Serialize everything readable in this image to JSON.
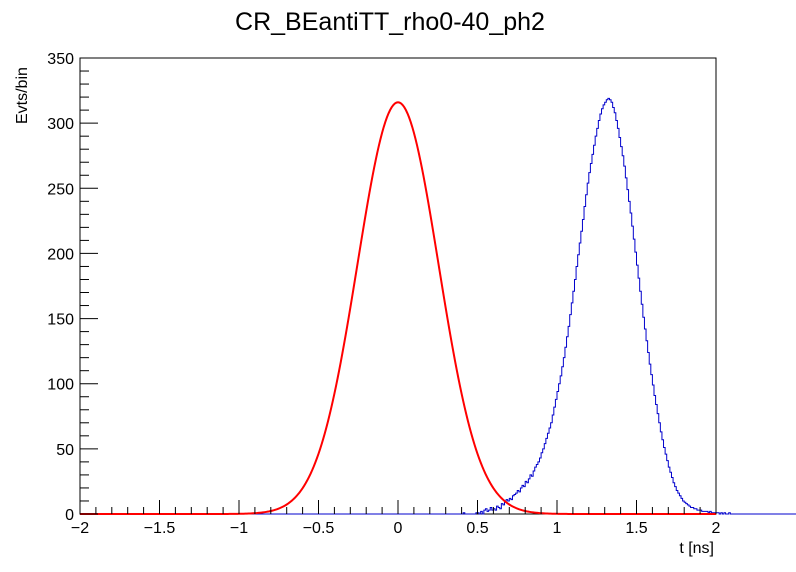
{
  "chart_data": {
    "type": "histogram",
    "title": "CR_BEantiTT_rho0-40_ph2",
    "xlabel": "t [ns]",
    "ylabel": "Evts/bin",
    "xlim": [
      -2,
      2
    ],
    "ylim": [
      0,
      350
    ],
    "x_ticks": [
      -2,
      -1.5,
      -1,
      -0.5,
      0,
      0.5,
      1,
      1.5,
      2
    ],
    "x_tick_labels": [
      "−2",
      "−1.5",
      "−1",
      "−0.5",
      "0",
      "0.5",
      "1",
      "1.5",
      "2"
    ],
    "y_ticks": [
      0,
      50,
      100,
      150,
      200,
      250,
      300,
      350
    ],
    "y_tick_labels": [
      "0",
      "50",
      "100",
      "150",
      "200",
      "250",
      "300",
      "350"
    ],
    "grid": false,
    "legend": "none",
    "bin_width": 0.01,
    "histogram": {
      "x_start": -2.0,
      "counts": [
        0,
        0,
        0,
        0,
        0,
        0,
        0,
        0,
        0,
        0,
        0,
        0,
        0,
        0,
        0,
        0,
        0,
        0,
        0,
        0,
        0,
        0,
        0,
        0,
        0,
        0,
        0,
        0,
        0,
        0,
        0,
        0,
        0,
        0,
        0,
        0,
        0,
        0,
        0,
        0,
        0,
        0,
        0,
        0,
        0,
        0,
        0,
        0,
        0,
        0,
        0,
        0,
        0,
        0,
        0,
        0,
        0,
        0,
        0,
        0,
        0,
        0,
        0,
        0,
        0,
        0,
        0,
        0,
        0,
        0,
        0,
        0,
        0,
        0,
        0,
        0,
        0,
        0,
        0,
        0,
        0,
        0,
        0,
        0,
        0,
        0,
        0,
        0,
        0,
        0,
        0,
        0,
        0,
        0,
        0,
        0,
        0,
        0,
        0,
        0,
        0,
        0,
        0,
        0,
        0,
        0,
        0,
        0,
        0,
        0,
        0,
        0,
        0,
        0,
        0,
        0,
        0,
        0,
        0,
        0,
        0,
        0,
        0,
        0,
        0,
        0,
        0,
        0,
        0,
        0,
        0,
        0,
        0,
        0,
        0,
        0,
        0,
        0,
        0,
        0,
        0,
        0,
        0,
        0,
        0,
        0,
        0,
        0,
        0,
        0,
        0,
        0,
        0,
        0,
        0,
        0,
        0,
        0,
        0,
        0,
        0,
        0,
        0,
        0,
        0,
        0,
        0,
        0,
        0,
        0,
        0,
        0,
        0,
        0,
        0,
        0,
        0,
        0,
        0,
        0,
        0,
        0,
        0,
        0,
        0,
        0,
        0,
        0,
        0,
        0,
        0,
        0,
        0,
        0,
        0,
        0,
        0,
        0,
        0,
        0,
        0,
        0,
        0,
        0,
        0,
        0,
        0,
        0,
        0,
        0,
        0,
        0,
        0,
        0,
        0,
        0,
        0,
        0,
        0,
        0,
        0,
        0,
        0,
        0,
        0,
        0,
        0,
        0,
        0,
        0,
        0,
        0,
        0,
        0,
        0,
        0,
        0,
        0,
        0,
        0,
        0,
        1,
        0,
        0,
        0,
        0,
        0,
        0,
        0,
        1,
        1,
        0,
        2,
        0,
        3,
        4,
        2,
        3,
        5,
        3,
        4,
        3,
        6,
        5,
        4,
        8,
        7,
        9,
        11,
        10,
        12,
        11,
        14,
        15,
        16,
        18,
        17,
        20,
        22,
        21,
        25,
        24,
        27,
        30,
        29,
        33,
        36,
        38,
        40,
        43,
        47,
        50,
        54,
        58,
        62,
        66,
        70,
        76,
        82,
        88,
        94,
        100,
        106,
        113,
        120,
        128,
        136,
        144,
        153,
        162,
        171,
        180,
        190,
        199,
        208,
        217,
        226,
        236,
        245,
        254,
        262,
        269,
        276,
        283,
        290,
        296,
        302,
        307,
        311,
        314,
        316,
        318,
        319,
        318,
        316,
        312,
        308,
        302,
        296,
        289,
        282,
        275,
        267,
        258,
        249,
        240,
        231,
        221,
        211,
        201,
        191,
        181,
        171,
        161,
        151,
        142,
        133,
        124,
        115,
        107,
        99,
        91,
        84,
        77,
        70,
        63,
        57,
        51,
        46,
        41,
        36,
        32,
        28,
        24,
        21,
        18,
        16,
        14,
        12,
        10,
        9,
        8,
        7,
        6,
        5,
        5,
        4,
        4,
        3,
        3,
        3,
        2,
        2,
        2,
        2,
        1,
        2,
        1,
        1,
        1,
        1,
        1,
        0,
        1,
        0,
        1,
        0,
        0,
        1,
        0,
        0,
        0,
        0,
        0,
        0,
        0,
        0,
        0,
        0,
        0,
        0,
        0,
        0,
        0,
        0,
        0,
        0,
        0,
        0,
        0,
        0,
        0,
        0,
        0,
        0,
        0,
        0,
        0,
        0,
        0,
        0,
        0,
        0,
        0,
        0,
        0,
        0,
        0,
        0,
        0,
        0,
        0,
        0,
        0,
        0,
        0,
        0,
        0,
        0,
        0,
        0,
        0,
        0,
        0,
        0,
        0,
        0,
        0,
        0,
        0,
        0,
        0,
        0,
        0,
        0,
        0,
        0,
        0,
        0,
        0,
        0,
        0,
        0,
        0,
        0,
        0,
        0,
        0,
        0,
        0,
        0,
        0,
        0,
        0,
        0,
        0,
        0,
        0,
        0,
        0,
        0,
        0,
        0,
        0,
        0,
        0,
        0,
        0,
        0,
        0,
        0,
        0,
        0,
        0,
        0,
        0,
        0,
        0,
        0,
        0,
        0,
        0,
        0,
        0,
        0,
        0,
        0,
        0,
        0,
        0,
        0,
        0,
        0,
        0,
        0,
        0,
        0,
        0,
        0,
        0,
        0,
        0,
        0,
        0,
        0,
        0,
        0,
        0,
        0,
        0,
        0,
        0,
        0,
        0,
        0,
        0,
        0,
        0,
        0,
        0,
        0,
        0,
        0,
        0,
        0,
        0,
        0,
        0,
        0,
        0,
        0,
        0,
        0,
        0,
        0,
        0,
        0,
        0,
        0,
        0,
        0,
        0
      ],
      "color": "#0000cc"
    },
    "fit": {
      "type": "gaussian",
      "amplitude": 316,
      "mean": 0.0,
      "sigma": 0.255,
      "color": "#ff0000"
    }
  }
}
